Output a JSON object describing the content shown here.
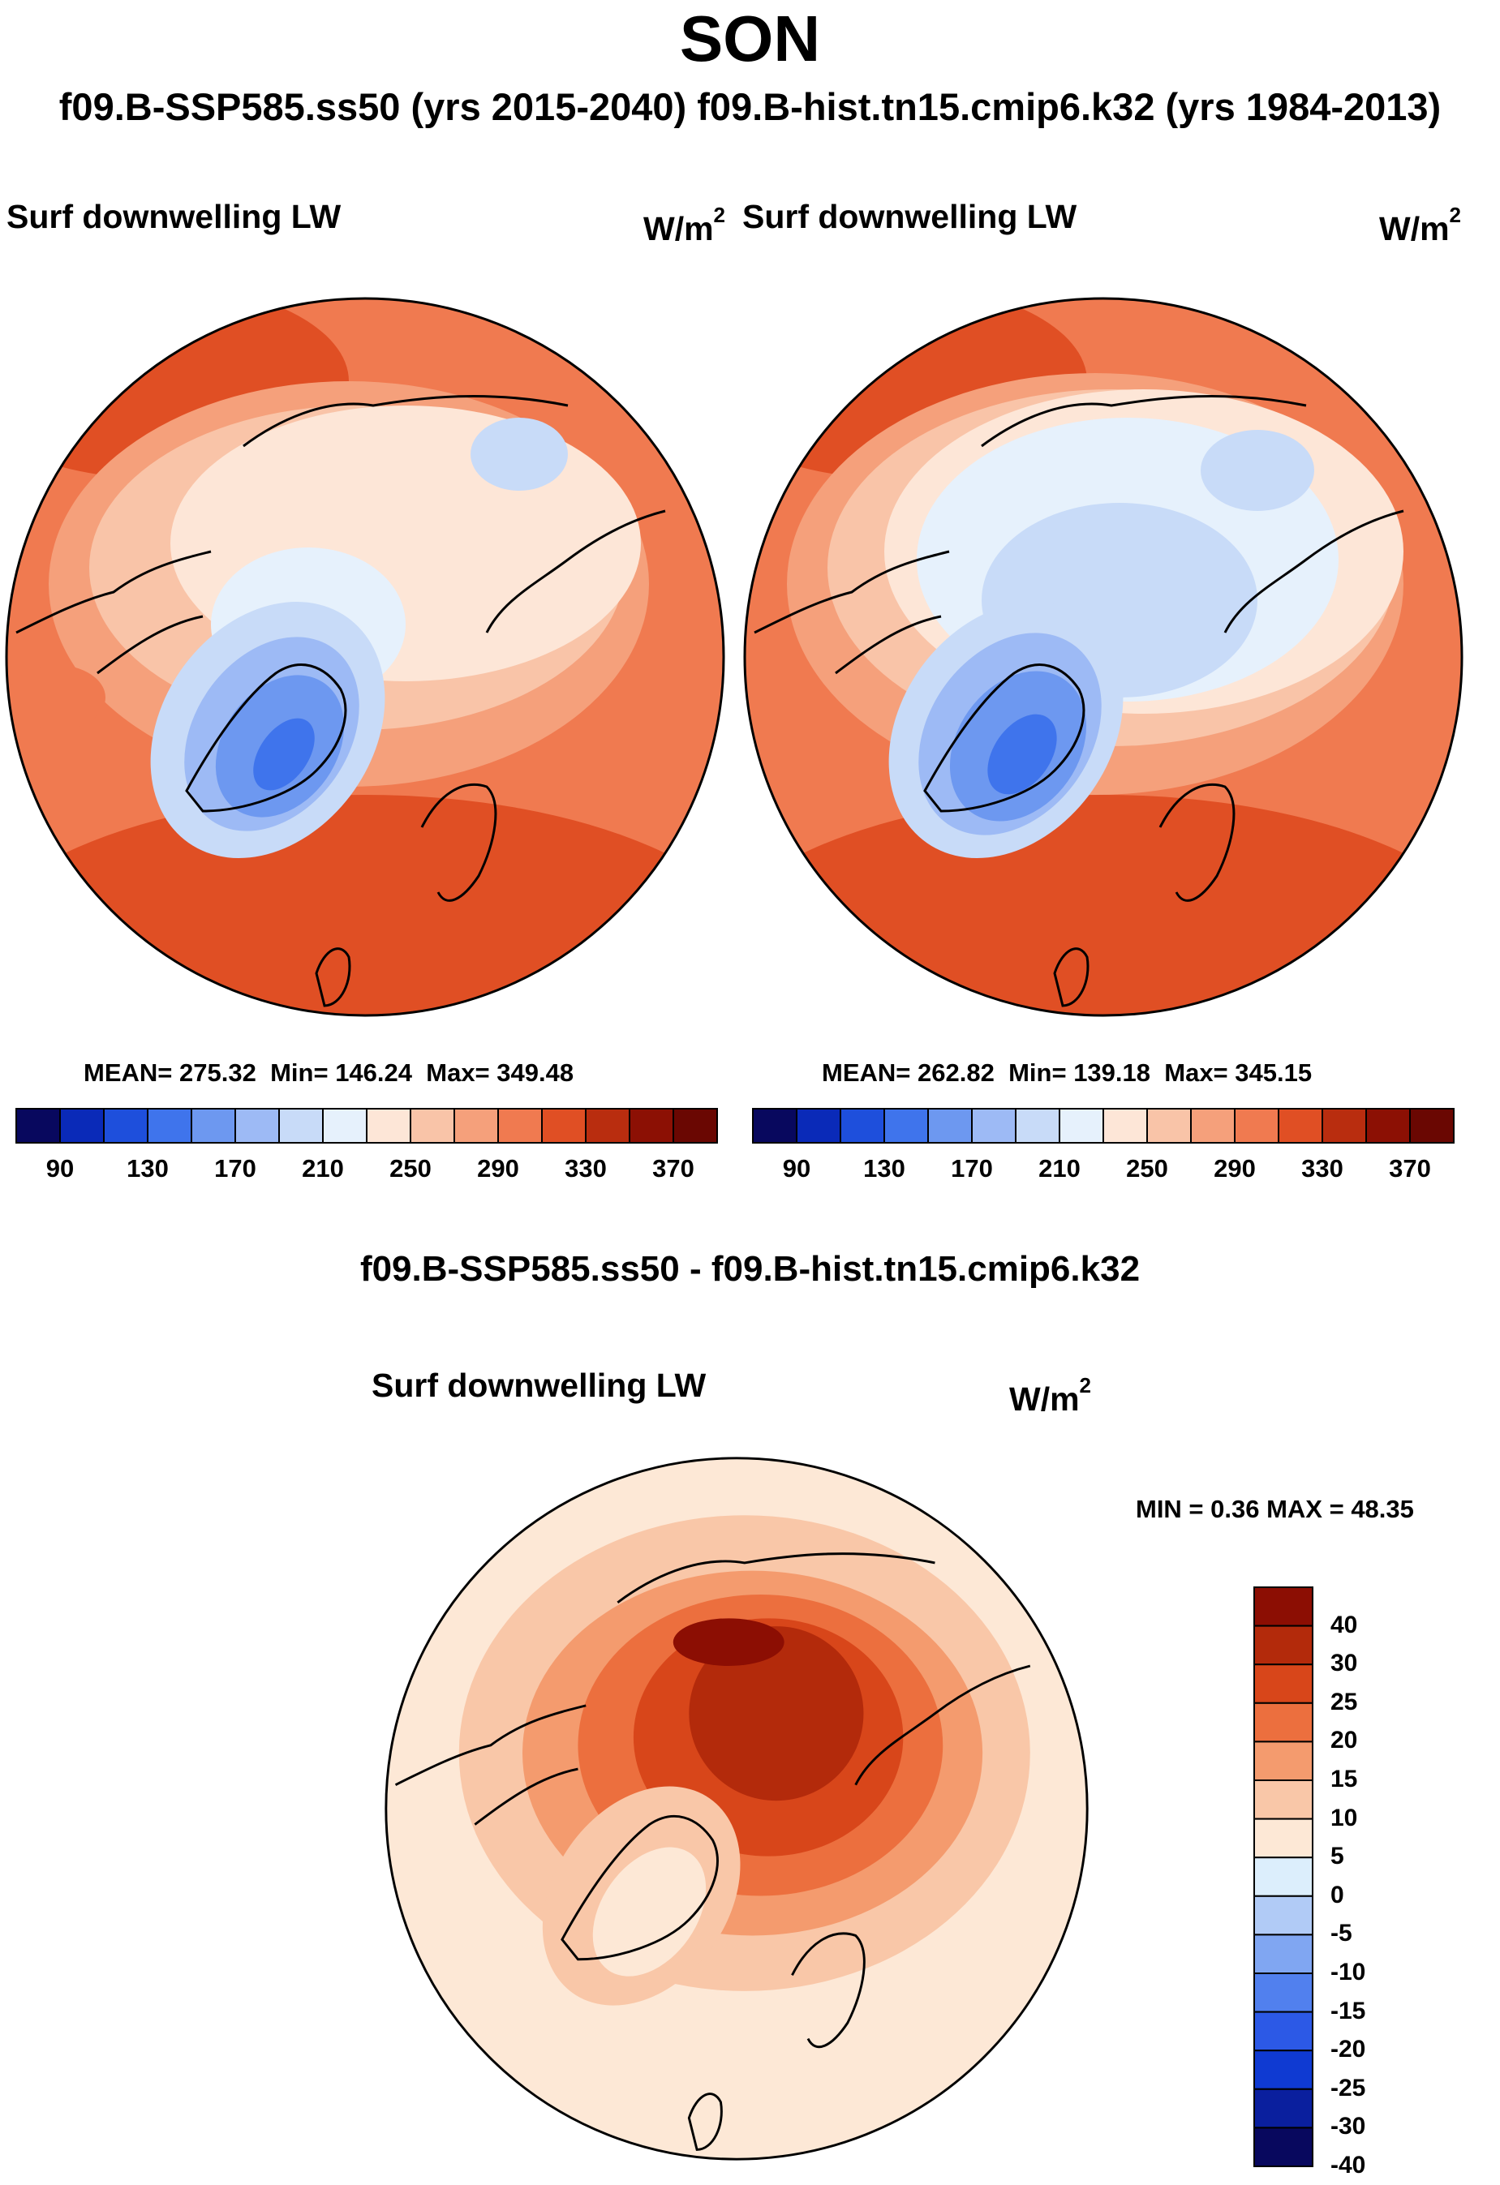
{
  "figure": {
    "title": "SON",
    "subtitle": "f09.B-SSP585.ss50 (yrs 2015-2040)  f09.B-hist.tn15.cmip6.k32 (yrs 1984-2013)",
    "difference_title": "f09.B-SSP585.ss50 - f09.B-hist.tn15.cmip6.k32"
  },
  "chart_data": [
    {
      "type": "polar-contour-map",
      "name": "f09.B-SSP585.ss50 (yrs 2015-2040)",
      "variable": "Surf downwelling LW",
      "units": {
        "base": "W/m",
        "exp": "2"
      },
      "stats": {
        "mean_label": "MEAN=",
        "mean": "275.32",
        "min_label": "Min=",
        "min": "146.24",
        "max_label": "Max=",
        "max": "349.48"
      },
      "colorbar": {
        "levels": [
          90,
          110,
          130,
          150,
          170,
          190,
          210,
          230,
          250,
          270,
          290,
          310,
          330,
          350,
          370
        ],
        "tick_labels": [
          "90",
          "130",
          "170",
          "210",
          "250",
          "290",
          "330",
          "370"
        ]
      }
    },
    {
      "type": "polar-contour-map",
      "name": "f09.B-hist.tn15.cmip6.k32 (yrs 1984-2013)",
      "variable": "Surf downwelling LW",
      "units": {
        "base": "W/m",
        "exp": "2"
      },
      "stats": {
        "mean_label": "MEAN=",
        "mean": "262.82",
        "min_label": "Min=",
        "min": "139.18",
        "max_label": "Max=",
        "max": "345.15"
      },
      "colorbar": {
        "levels": [
          90,
          110,
          130,
          150,
          170,
          190,
          210,
          230,
          250,
          270,
          290,
          310,
          330,
          350,
          370
        ],
        "tick_labels": [
          "90",
          "130",
          "170",
          "210",
          "250",
          "290",
          "330",
          "370"
        ]
      }
    },
    {
      "type": "polar-contour-map",
      "name": "difference",
      "variable": "Surf downwelling LW",
      "units": {
        "base": "W/m",
        "exp": "2"
      },
      "stats": {
        "text": "MIN =   0.36 MAX =  48.35"
      },
      "colorbar": {
        "levels": [
          -40,
          -30,
          -25,
          -20,
          -15,
          -10,
          -5,
          0,
          5,
          10,
          15,
          20,
          25,
          30,
          40
        ],
        "tick_labels": [
          "40",
          "30",
          "25",
          "20",
          "15",
          "10",
          "5",
          "0",
          "-5",
          "-10",
          "-15",
          "-20",
          "-25",
          "-30",
          "-40"
        ]
      }
    }
  ],
  "palette": {
    "sequential": [
      "#08085e",
      "#0a2ab8",
      "#1e4fdc",
      "#3f74ec",
      "#6d98f0",
      "#9dbaf5",
      "#c8dbf8",
      "#e6f1fc",
      "#fde6d7",
      "#f9c4a8",
      "#f5a07b",
      "#f07a50",
      "#e04f24",
      "#b92d0f",
      "#8c1004",
      "#6a0702"
    ],
    "difference": [
      "#08085e",
      "#0a1f9e",
      "#0f3ad2",
      "#2c59e6",
      "#5180ee",
      "#80a6f2",
      "#b1cbf6",
      "#dceefc",
      "#fde8d6",
      "#f9c7a8",
      "#f49b6e",
      "#ec6f3e",
      "#d8461a",
      "#b32a0b",
      "#8c0e03"
    ]
  }
}
